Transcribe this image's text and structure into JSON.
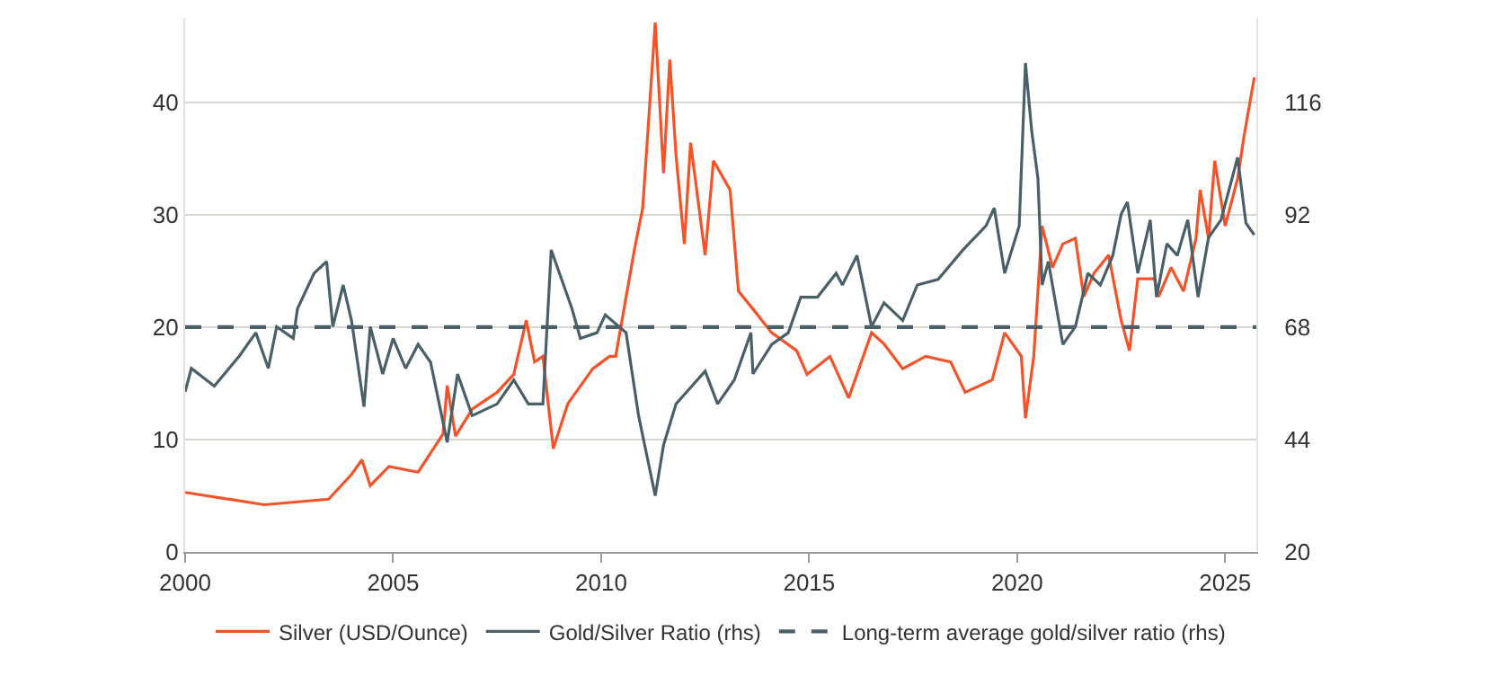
{
  "chart_data": {
    "type": "line",
    "xlim": [
      2000,
      2025.75
    ],
    "xticks": [
      2000,
      2005,
      2010,
      2015,
      2020,
      2025
    ],
    "ylim": [
      0,
      47.5
    ],
    "yticks": [
      0,
      10,
      20,
      30,
      40
    ],
    "y2lim": [
      20,
      134
    ],
    "y2ticks": [
      20,
      44,
      68,
      92,
      116
    ],
    "grid": "y",
    "legend": "bottom",
    "line_style": "solid",
    "marker": "none",
    "series": [
      {
        "name": "Silver (USD/Ounce)",
        "color": "#f4532a",
        "x": [
          2000.0,
          2001.9,
          2003.45,
          2004.0,
          2004.25,
          2004.45,
          2004.9,
          2005.6,
          2006.2,
          2006.3,
          2006.5,
          2006.9,
          2007.5,
          2007.9,
          2008.2,
          2008.4,
          2008.6,
          2008.85,
          2009.2,
          2009.8,
          2010.2,
          2010.35,
          2010.8,
          2011.0,
          2011.3,
          2011.5,
          2011.65,
          2011.8,
          2012.0,
          2012.15,
          2012.5,
          2012.7,
          2013.1,
          2013.3,
          2013.65,
          2014.1,
          2014.7,
          2014.95,
          2015.5,
          2015.95,
          2016.5,
          2016.8,
          2017.25,
          2017.8,
          2018.4,
          2018.75,
          2019.4,
          2019.7,
          2020.1,
          2020.2,
          2020.4,
          2020.6,
          2020.85,
          2021.1,
          2021.4,
          2021.6,
          2021.85,
          2022.2,
          2022.5,
          2022.7,
          2022.9,
          2023.3,
          2023.4,
          2023.7,
          2024.0,
          2024.3,
          2024.4,
          2024.6,
          2024.75,
          2025.0,
          2025.3,
          2025.45,
          2025.7
        ],
        "values": [
          5.3,
          4.2,
          4.7,
          6.9,
          8.2,
          5.9,
          7.6,
          7.1,
          10.5,
          14.8,
          10.3,
          12.7,
          14.2,
          15.8,
          20.6,
          16.9,
          17.4,
          9.2,
          13.2,
          16.3,
          17.4,
          17.4,
          26.9,
          30.6,
          47.1,
          33.7,
          43.8,
          35.3,
          27.4,
          36.4,
          26.4,
          34.8,
          32.2,
          23.2,
          21.6,
          19.5,
          17.9,
          15.8,
          17.4,
          13.7,
          19.5,
          18.5,
          16.3,
          17.4,
          16.9,
          14.2,
          15.3,
          19.5,
          17.4,
          11.9,
          17.4,
          29.0,
          25.3,
          27.4,
          27.9,
          22.7,
          24.8,
          26.4,
          20.6,
          17.9,
          24.3,
          24.3,
          22.7,
          25.3,
          23.2,
          27.9,
          32.2,
          27.9,
          34.8,
          29.0,
          33.2,
          36.9,
          42.2
        ]
      },
      {
        "name": "Gold/Silver Ratio (rhs)",
        "color": "#4a6068",
        "axis": "y2",
        "x": [
          2000.0,
          2000.15,
          2000.7,
          2001.3,
          2001.7,
          2002.0,
          2002.2,
          2002.6,
          2002.7,
          2003.1,
          2003.4,
          2003.55,
          2003.8,
          2004.0,
          2004.3,
          2004.45,
          2004.75,
          2005.0,
          2005.3,
          2005.6,
          2005.9,
          2006.3,
          2006.55,
          2006.9,
          2007.5,
          2007.9,
          2008.25,
          2008.6,
          2008.8,
          2009.05,
          2009.3,
          2009.5,
          2009.9,
          2010.1,
          2010.6,
          2010.9,
          2011.3,
          2011.5,
          2011.8,
          2012.5,
          2012.8,
          2013.2,
          2013.6,
          2013.65,
          2014.1,
          2014.5,
          2014.8,
          2015.2,
          2015.65,
          2015.8,
          2016.15,
          2016.5,
          2016.8,
          2017.25,
          2017.6,
          2018.1,
          2018.7,
          2019.25,
          2019.45,
          2019.7,
          2020.05,
          2020.2,
          2020.35,
          2020.5,
          2020.6,
          2020.75,
          2021.1,
          2021.4,
          2021.7,
          2022.0,
          2022.3,
          2022.5,
          2022.65,
          2022.9,
          2023.2,
          2023.35,
          2023.6,
          2023.85,
          2024.1,
          2024.35,
          2024.6,
          2024.9,
          2025.3,
          2025.5,
          2025.7
        ],
        "values": [
          54.2,
          59.2,
          55.4,
          61.8,
          66.8,
          59.2,
          68.1,
          65.6,
          71.9,
          79.5,
          82.0,
          68.1,
          77.0,
          69.4,
          51.0,
          68.1,
          58.0,
          65.6,
          59.2,
          64.3,
          60.5,
          43.4,
          58.0,
          49.1,
          51.6,
          56.7,
          51.6,
          51.6,
          84.5,
          78.2,
          71.9,
          65.6,
          66.8,
          70.6,
          66.8,
          49.1,
          32.0,
          42.8,
          51.6,
          58.6,
          51.6,
          56.7,
          66.8,
          58.0,
          64.3,
          66.8,
          74.4,
          74.4,
          79.5,
          77.0,
          83.3,
          68.1,
          73.2,
          69.4,
          77.0,
          78.2,
          84.5,
          89.6,
          93.4,
          79.5,
          89.6,
          124.4,
          109.9,
          99.7,
          77.0,
          82.0,
          64.3,
          68.1,
          79.5,
          77.0,
          83.3,
          92.1,
          94.7,
          79.5,
          90.9,
          74.4,
          85.8,
          83.3,
          90.9,
          74.4,
          87.1,
          90.9,
          104.2,
          90.2,
          87.7
        ]
      }
    ],
    "ref_lines": [
      {
        "axis": "y2",
        "value": 68,
        "label": "Long-term average gold/silver ratio (rhs)",
        "color": "#4a6068",
        "line_style": "dashed"
      }
    ]
  }
}
